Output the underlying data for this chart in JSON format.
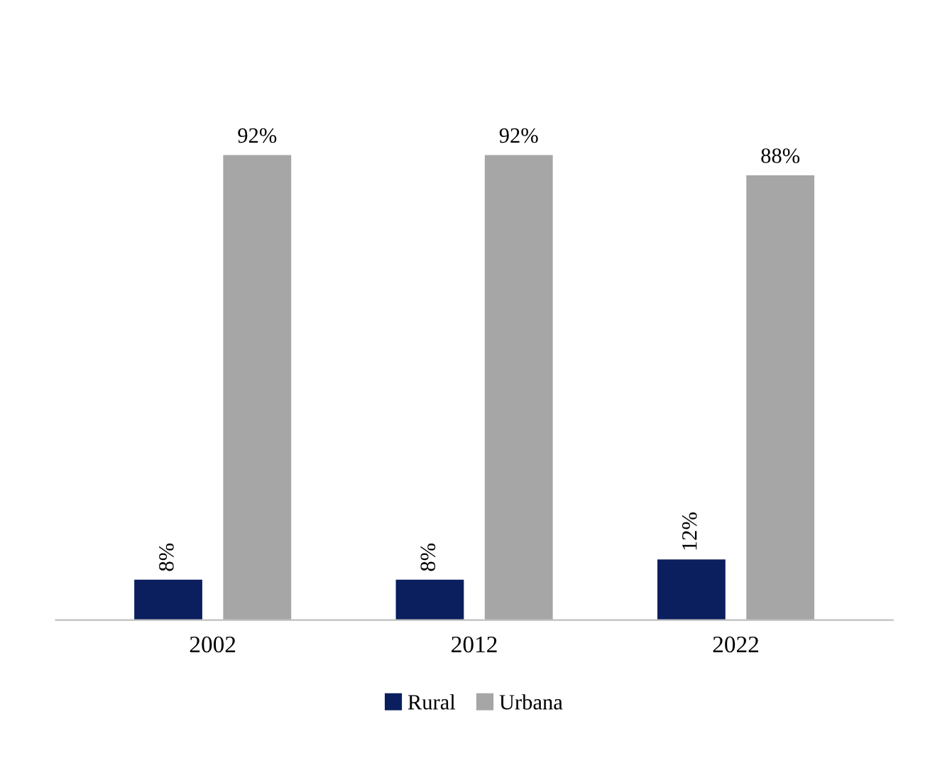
{
  "chart_data": {
    "type": "bar",
    "categories": [
      "2002",
      "2012",
      "2022"
    ],
    "series": [
      {
        "name": "Rural",
        "color": "#0b1f5e",
        "values": [
          8,
          8,
          12
        ],
        "value_labels": [
          "8%",
          "8%",
          "12%"
        ]
      },
      {
        "name": "Urbana",
        "color": "#a6a6a6",
        "values": [
          92,
          92,
          88
        ],
        "value_labels": [
          "92%",
          "92%",
          "88%"
        ]
      }
    ],
    "legend": "bottom"
  }
}
